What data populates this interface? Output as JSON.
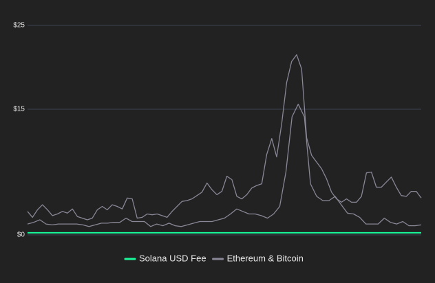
{
  "chart_data": {
    "type": "line",
    "ylim": [
      0,
      25
    ],
    "yticks": [
      {
        "value": 0,
        "label": "$0"
      },
      {
        "value": 15,
        "label": "$15"
      },
      {
        "value": 25,
        "label": "$25"
      }
    ],
    "grid": true,
    "legend": "bottom",
    "series": [
      {
        "name": "Solana USD Fee",
        "color": "#19fb9b",
        "values": [
          0.25,
          0.25,
          0.25,
          0.25,
          0.25
        ]
      },
      {
        "name": "Ethereum & Bitcoin",
        "color": "#8a8796",
        "values": [
          2.8,
          2.1,
          3.0,
          3.6,
          3.0,
          2.3,
          2.5,
          2.8,
          2.6,
          3.1,
          2.2,
          2.0,
          1.8,
          2.0,
          3.0,
          3.4,
          3.0,
          3.6,
          3.4,
          3.1,
          4.4,
          4.3,
          2.0,
          2.1,
          2.5,
          2.4,
          2.5,
          2.3,
          2.1,
          2.8,
          3.4,
          4.0,
          4.1,
          4.3,
          4.7,
          5.1,
          6.2,
          5.4,
          4.8,
          5.2,
          7.0,
          6.6,
          4.6,
          4.3,
          4.8,
          5.6,
          5.9,
          6.1,
          9.6,
          11.5,
          9.3,
          13.3,
          18.2,
          20.7,
          21.5,
          19.8,
          11.6,
          9.5,
          8.7,
          7.9,
          6.7,
          5.1,
          4.3,
          3.9,
          4.3,
          3.9,
          3.9,
          4.6,
          7.4,
          7.5,
          5.7,
          5.7,
          6.3,
          6.9,
          5.7,
          4.7,
          4.6,
          5.2,
          5.2,
          4.4
        ]
      },
      {
        "color": "#8a8796",
        "values": [
          1.3,
          1.5,
          1.8,
          1.3,
          1.2,
          1.3,
          1.3,
          1.3,
          1.3,
          1.2,
          1.0,
          1.2,
          1.4,
          1.4,
          1.5,
          1.5,
          2.0,
          1.6,
          1.6,
          1.6,
          1.0,
          1.3,
          1.1,
          1.4,
          1.1,
          1.0,
          1.2,
          1.4,
          1.6,
          1.6,
          1.6,
          1.8,
          2.0,
          2.5,
          3.1,
          2.8,
          2.5,
          2.5,
          2.3,
          2.0,
          2.5,
          3.4,
          7.5,
          14.1,
          15.6,
          14.1,
          6.1,
          4.6,
          4.1,
          4.1,
          4.6,
          3.6,
          2.6,
          2.5,
          2.1,
          1.3,
          1.3,
          1.3,
          2.0,
          1.5,
          1.3,
          1.6,
          1.1,
          1.1,
          1.2
        ]
      }
    ]
  }
}
